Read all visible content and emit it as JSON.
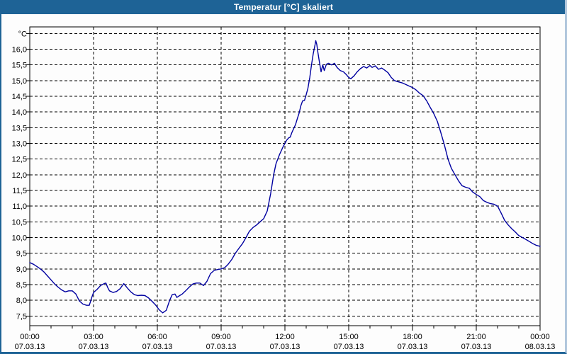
{
  "window": {
    "title": "Temperatur [°C] skaliert"
  },
  "colors": {
    "titlebar_bg": "#1e6396",
    "titlebar_text": "#ffffff",
    "plot_bg": "#fdfdfd",
    "grid": "#000000",
    "axis_text": "#000000",
    "series_line": "#0000a0"
  },
  "chart_data": {
    "type": "line",
    "title": "Temperatur [°C] skaliert",
    "grid": "dashed",
    "legend": "none",
    "y_axis": {
      "top_label": "°C",
      "min": 7.5,
      "max": 16.5,
      "step": 0.5,
      "labels": [
        "16,0",
        "15,5",
        "15,0",
        "14,5",
        "14,0",
        "13,5",
        "13,0",
        "12,5",
        "12,0",
        "11,5",
        "11,0",
        "10,5",
        "10,0",
        "9,5",
        "9,0",
        "8,5",
        "8,0",
        "7,5"
      ]
    },
    "x_axis": {
      "range_hours": [
        0,
        24
      ],
      "major_tick_hours": 3,
      "minor_tick_hours": 1,
      "ticks": [
        {
          "time": "00:00",
          "date": "07.03.13"
        },
        {
          "time": "03:00",
          "date": "07.03.13"
        },
        {
          "time": "06:00",
          "date": "07.03.13"
        },
        {
          "time": "09:00",
          "date": "07.03.13"
        },
        {
          "time": "12:00",
          "date": "07.03.13"
        },
        {
          "time": "15:00",
          "date": "07.03.13"
        },
        {
          "time": "18:00",
          "date": "07.03.13"
        },
        {
          "time": "21:00",
          "date": "07.03.13"
        },
        {
          "time": "00:00",
          "date": "08.03.13"
        }
      ]
    },
    "series": [
      {
        "name": "Temperatur",
        "color": "#0000a0",
        "points": [
          [
            0,
            9.2
          ],
          [
            0.17,
            9.15
          ],
          [
            0.33,
            9.08
          ],
          [
            0.5,
            9.0
          ],
          [
            0.67,
            8.9
          ],
          [
            0.83,
            8.78
          ],
          [
            1.0,
            8.65
          ],
          [
            1.17,
            8.52
          ],
          [
            1.33,
            8.42
          ],
          [
            1.5,
            8.33
          ],
          [
            1.67,
            8.27
          ],
          [
            1.83,
            8.3
          ],
          [
            2.0,
            8.3
          ],
          [
            2.17,
            8.2
          ],
          [
            2.33,
            7.98
          ],
          [
            2.5,
            7.88
          ],
          [
            2.67,
            7.84
          ],
          [
            2.8,
            7.84
          ],
          [
            2.92,
            8.1
          ],
          [
            3.0,
            8.25
          ],
          [
            3.17,
            8.35
          ],
          [
            3.33,
            8.47
          ],
          [
            3.5,
            8.53
          ],
          [
            3.58,
            8.55
          ],
          [
            3.67,
            8.4
          ],
          [
            3.75,
            8.3
          ],
          [
            3.92,
            8.25
          ],
          [
            4.08,
            8.28
          ],
          [
            4.25,
            8.37
          ],
          [
            4.42,
            8.53
          ],
          [
            4.58,
            8.4
          ],
          [
            4.75,
            8.27
          ],
          [
            4.92,
            8.18
          ],
          [
            5.08,
            8.15
          ],
          [
            5.25,
            8.16
          ],
          [
            5.42,
            8.15
          ],
          [
            5.58,
            8.08
          ],
          [
            5.75,
            7.97
          ],
          [
            5.92,
            7.85
          ],
          [
            6.08,
            7.7
          ],
          [
            6.25,
            7.6
          ],
          [
            6.42,
            7.68
          ],
          [
            6.58,
            8.0
          ],
          [
            6.7,
            8.18
          ],
          [
            6.83,
            8.2
          ],
          [
            6.92,
            8.09
          ],
          [
            7.0,
            8.13
          ],
          [
            7.17,
            8.2
          ],
          [
            7.33,
            8.3
          ],
          [
            7.5,
            8.42
          ],
          [
            7.67,
            8.52
          ],
          [
            7.83,
            8.55
          ],
          [
            8.0,
            8.55
          ],
          [
            8.17,
            8.47
          ],
          [
            8.33,
            8.6
          ],
          [
            8.5,
            8.85
          ],
          [
            8.67,
            8.95
          ],
          [
            8.83,
            8.98
          ],
          [
            9.0,
            9.0
          ],
          [
            9.17,
            9.04
          ],
          [
            9.33,
            9.15
          ],
          [
            9.5,
            9.3
          ],
          [
            9.67,
            9.5
          ],
          [
            9.83,
            9.65
          ],
          [
            10.0,
            9.8
          ],
          [
            10.17,
            10.0
          ],
          [
            10.33,
            10.2
          ],
          [
            10.5,
            10.32
          ],
          [
            10.67,
            10.4
          ],
          [
            10.83,
            10.5
          ],
          [
            11.0,
            10.6
          ],
          [
            11.17,
            10.85
          ],
          [
            11.33,
            11.4
          ],
          [
            11.47,
            12.0
          ],
          [
            11.58,
            12.35
          ],
          [
            11.75,
            12.65
          ],
          [
            11.92,
            12.9
          ],
          [
            12.0,
            13.0
          ],
          [
            12.08,
            13.1
          ],
          [
            12.17,
            13.17
          ],
          [
            12.25,
            13.2
          ],
          [
            12.33,
            13.35
          ],
          [
            12.5,
            13.6
          ],
          [
            12.58,
            13.78
          ],
          [
            12.67,
            13.97
          ],
          [
            12.75,
            14.2
          ],
          [
            12.83,
            14.35
          ],
          [
            12.92,
            14.37
          ],
          [
            13.0,
            14.55
          ],
          [
            13.08,
            14.75
          ],
          [
            13.17,
            15.1
          ],
          [
            13.25,
            15.5
          ],
          [
            13.33,
            15.85
          ],
          [
            13.42,
            16.15
          ],
          [
            13.45,
            16.27
          ],
          [
            13.5,
            16.15
          ],
          [
            13.55,
            15.9
          ],
          [
            13.62,
            15.6
          ],
          [
            13.7,
            15.28
          ],
          [
            13.78,
            15.5
          ],
          [
            13.85,
            15.32
          ],
          [
            13.95,
            15.52
          ],
          [
            14.05,
            15.55
          ],
          [
            14.2,
            15.5
          ],
          [
            14.33,
            15.55
          ],
          [
            14.45,
            15.42
          ],
          [
            14.6,
            15.32
          ],
          [
            14.75,
            15.28
          ],
          [
            14.9,
            15.18
          ],
          [
            15.0,
            15.1
          ],
          [
            15.1,
            15.06
          ],
          [
            15.25,
            15.15
          ],
          [
            15.4,
            15.28
          ],
          [
            15.55,
            15.38
          ],
          [
            15.7,
            15.45
          ],
          [
            15.85,
            15.4
          ],
          [
            16.0,
            15.48
          ],
          [
            16.1,
            15.42
          ],
          [
            16.25,
            15.47
          ],
          [
            16.4,
            15.36
          ],
          [
            16.55,
            15.4
          ],
          [
            16.7,
            15.33
          ],
          [
            16.85,
            15.25
          ],
          [
            17.0,
            15.1
          ],
          [
            17.15,
            15.0
          ],
          [
            17.33,
            14.96
          ],
          [
            17.5,
            14.93
          ],
          [
            17.67,
            14.88
          ],
          [
            17.83,
            14.83
          ],
          [
            18.0,
            14.78
          ],
          [
            18.17,
            14.7
          ],
          [
            18.33,
            14.6
          ],
          [
            18.5,
            14.52
          ],
          [
            18.67,
            14.35
          ],
          [
            18.83,
            14.15
          ],
          [
            19.0,
            13.95
          ],
          [
            19.17,
            13.7
          ],
          [
            19.33,
            13.35
          ],
          [
            19.5,
            12.95
          ],
          [
            19.67,
            12.5
          ],
          [
            19.83,
            12.2
          ],
          [
            20.0,
            12.0
          ],
          [
            20.17,
            11.8
          ],
          [
            20.33,
            11.65
          ],
          [
            20.5,
            11.6
          ],
          [
            20.67,
            11.57
          ],
          [
            20.83,
            11.45
          ],
          [
            21.0,
            11.37
          ],
          [
            21.17,
            11.3
          ],
          [
            21.33,
            11.18
          ],
          [
            21.5,
            11.12
          ],
          [
            21.67,
            11.08
          ],
          [
            21.83,
            11.06
          ],
          [
            22.0,
            11.0
          ],
          [
            22.17,
            10.78
          ],
          [
            22.33,
            10.55
          ],
          [
            22.5,
            10.4
          ],
          [
            22.67,
            10.28
          ],
          [
            22.83,
            10.18
          ],
          [
            23.0,
            10.06
          ],
          [
            23.17,
            10.0
          ],
          [
            23.33,
            9.94
          ],
          [
            23.5,
            9.87
          ],
          [
            23.67,
            9.8
          ],
          [
            23.83,
            9.75
          ],
          [
            24.0,
            9.72
          ]
        ]
      }
    ]
  }
}
